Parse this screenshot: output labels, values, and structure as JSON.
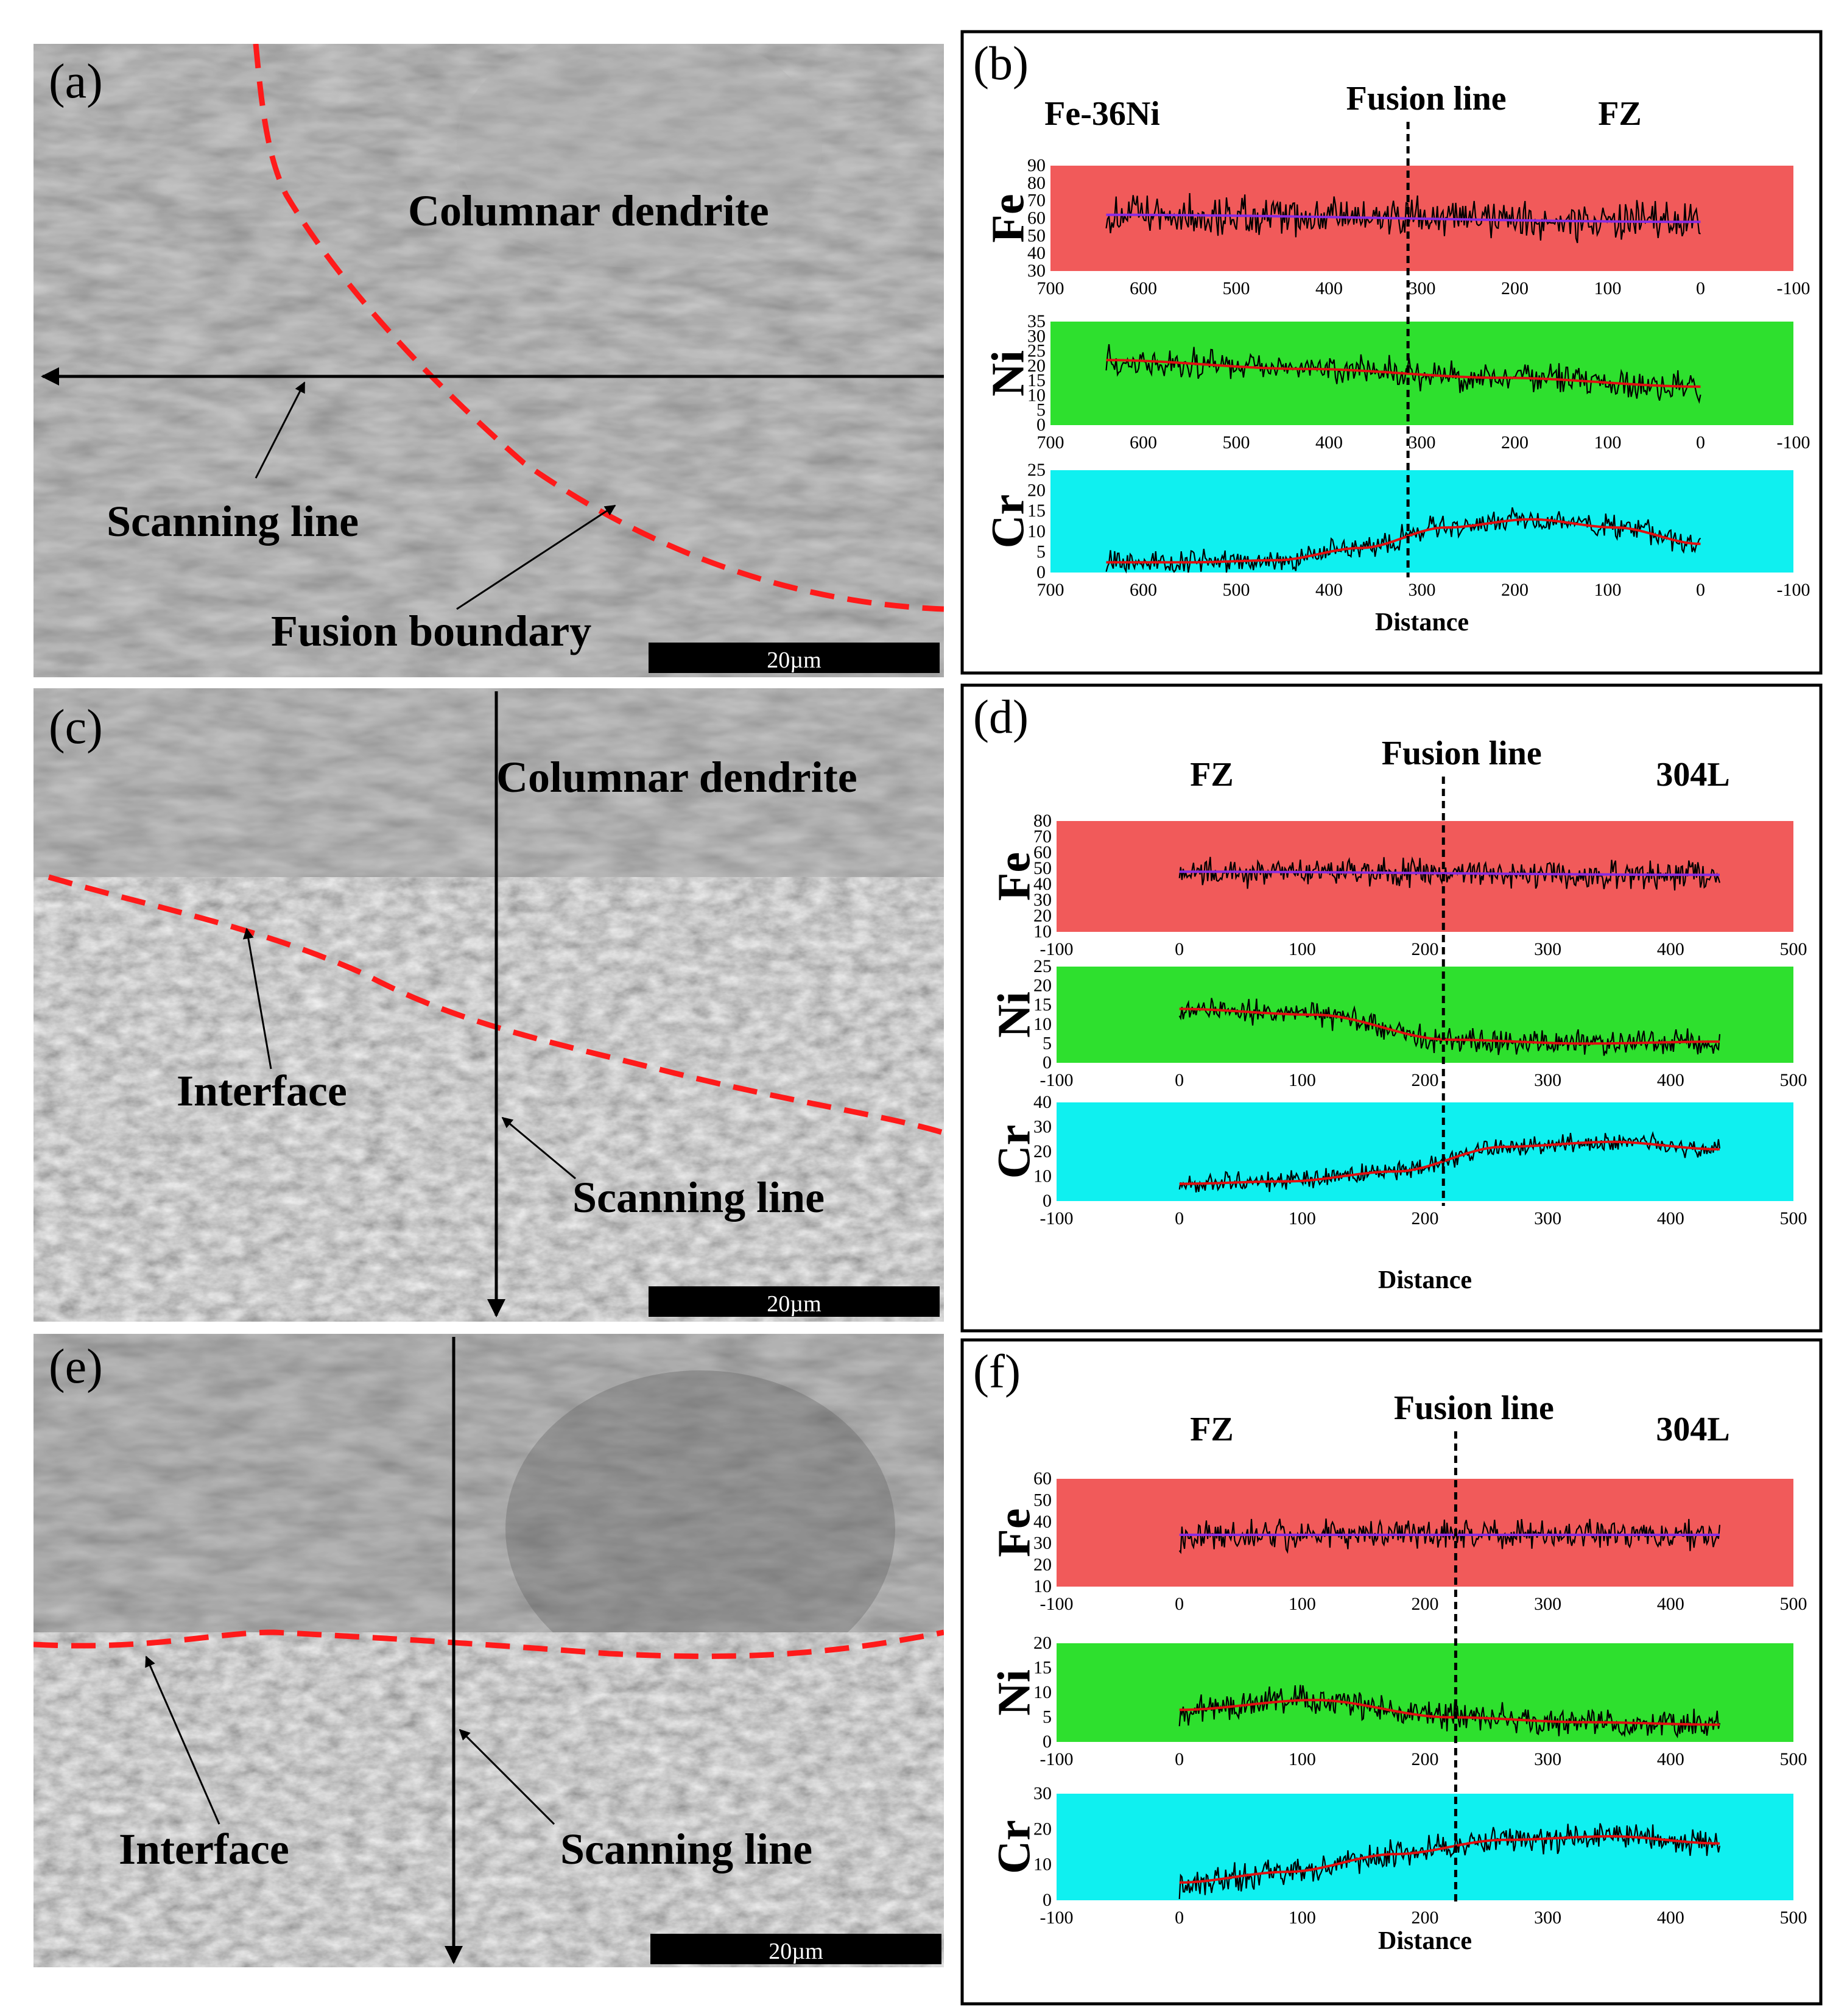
{
  "figure": {
    "panels": [
      {
        "id": "a",
        "kind": "sem",
        "label": "(a)",
        "annotations": [
          "Columnar dendrite",
          "Scanning line",
          "Fusion boundary"
        ],
        "scale_bar": "20µm"
      },
      {
        "id": "c",
        "kind": "sem",
        "label": "(c)",
        "annotations": [
          "Columnar dendrite",
          "Interface",
          "Scanning line"
        ],
        "scale_bar": "20µm"
      },
      {
        "id": "e",
        "kind": "sem",
        "label": "(e)",
        "annotations": [
          "Interface",
          "Scanning line"
        ],
        "scale_bar": "20µm"
      }
    ],
    "colors": {
      "fe_band": "#f15a5a",
      "ni_band": "#2ee02e",
      "cr_band": "#0ff0f0",
      "fusion_boundary": "#ff1a1a",
      "fe_trend": "#8a2be2",
      "trend": "#e01010",
      "signal": "#000000"
    }
  },
  "chart_data": [
    {
      "type": "line",
      "panel_label": "(b)",
      "region_left": "Fe-36Ni",
      "region_right": "FZ",
      "fusion_line_label": "Fusion line",
      "fusion_line_x": 315,
      "xlabel": "Distance",
      "x_reversed": true,
      "xlim": [
        700,
        -100
      ],
      "xticks": [
        "700",
        "600",
        "500",
        "400",
        "300",
        "200",
        "100",
        "0",
        "-100"
      ],
      "data_x_range": [
        640,
        0
      ],
      "series": [
        {
          "name": "Fe",
          "ylim": [
            30,
            90
          ],
          "yticks": [
            "30",
            "40",
            "50",
            "60",
            "70",
            "80",
            "90"
          ],
          "trend_y": [
            62,
            58
          ],
          "noise": 12
        },
        {
          "name": "Ni",
          "ylim": [
            0,
            35
          ],
          "yticks": [
            "0",
            "5",
            "10",
            "15",
            "20",
            "25",
            "30",
            "35"
          ],
          "trend_y": [
            22,
            19,
            16,
            13
          ],
          "noise": 5
        },
        {
          "name": "Cr",
          "ylim": [
            0,
            25
          ],
          "yticks": [
            "0",
            "5",
            "10",
            "15",
            "20",
            "25"
          ],
          "trend_y": [
            2.5,
            2.5,
            3,
            6,
            11,
            13,
            11,
            7
          ],
          "noise": 3
        }
      ]
    },
    {
      "type": "line",
      "panel_label": "(d)",
      "region_left": "FZ",
      "region_right": "304L",
      "fusion_line_label": "Fusion line",
      "fusion_line_x": 215,
      "xlabel": "Distance",
      "x_reversed": false,
      "xlim": [
        -100,
        500
      ],
      "xticks": [
        "-100",
        "0",
        "100",
        "200",
        "300",
        "400",
        "500"
      ],
      "data_x_range": [
        0,
        440
      ],
      "series": [
        {
          "name": "Fe",
          "ylim": [
            10,
            80
          ],
          "yticks": [
            "10",
            "20",
            "30",
            "40",
            "50",
            "60",
            "70",
            "80"
          ],
          "trend_y": [
            48,
            46
          ],
          "noise": 9
        },
        {
          "name": "Ni",
          "ylim": [
            0,
            25
          ],
          "yticks": [
            "0",
            "5",
            "10",
            "15",
            "20",
            "25"
          ],
          "trend_y": [
            14,
            12.5,
            6,
            5,
            5.5
          ],
          "noise": 3.5
        },
        {
          "name": "Cr",
          "ylim": [
            0,
            40
          ],
          "yticks": [
            "0",
            "10",
            "20",
            "30",
            "40"
          ],
          "trend_y": [
            7,
            8,
            12,
            22,
            24,
            21
          ],
          "noise": 4
        }
      ]
    },
    {
      "type": "line",
      "panel_label": "(f)",
      "region_left": "FZ",
      "region_right": "304L",
      "fusion_line_label": "Fusion line",
      "fusion_line_x": 225,
      "xlabel": "Distance",
      "x_reversed": false,
      "xlim": [
        -100,
        500
      ],
      "xticks": [
        "-100",
        "0",
        "100",
        "200",
        "300",
        "400",
        "500"
      ],
      "data_x_range": [
        0,
        440
      ],
      "series": [
        {
          "name": "Fe",
          "ylim": [
            10,
            60
          ],
          "yticks": [
            "10",
            "20",
            "30",
            "40",
            "50",
            "60"
          ],
          "trend_y": [
            34,
            34
          ],
          "noise": 7
        },
        {
          "name": "Ni",
          "ylim": [
            0,
            20
          ],
          "yticks": [
            "0",
            "5",
            "10",
            "15",
            "20"
          ],
          "trend_y": [
            6.5,
            8.5,
            5,
            4,
            3.5
          ],
          "noise": 3
        },
        {
          "name": "Cr",
          "ylim": [
            0,
            30
          ],
          "yticks": [
            "0",
            "10",
            "20",
            "30"
          ],
          "trend_y": [
            5,
            8,
            13,
            17,
            18,
            16
          ],
          "noise": 4
        }
      ]
    }
  ]
}
